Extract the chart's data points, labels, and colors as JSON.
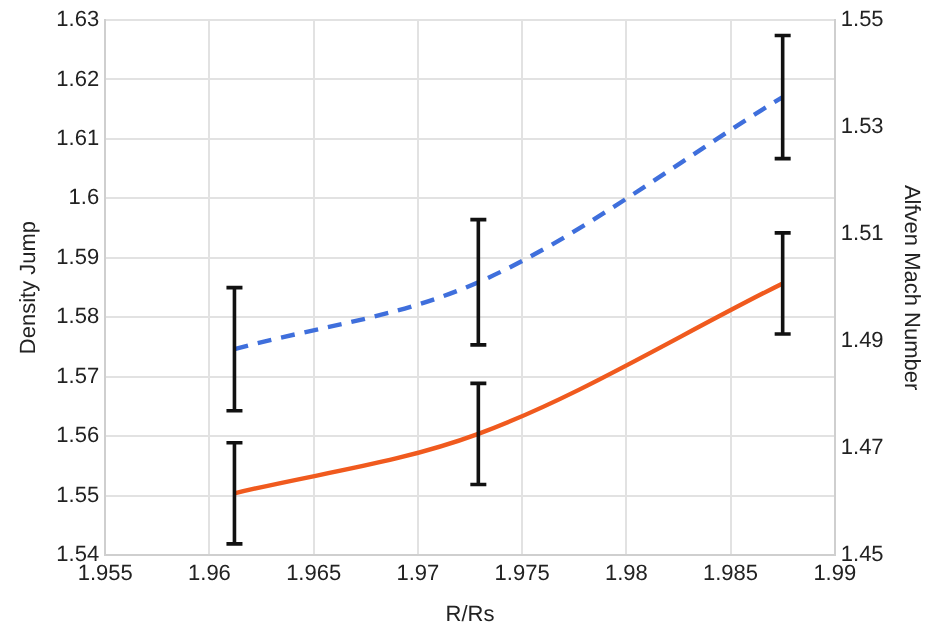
{
  "chart_data": {
    "type": "line",
    "xlabel": "R/Rs",
    "ylabel": "Density Jump",
    "y2label": "Alfven Mach Number",
    "x": [
      1.9612,
      1.9729,
      1.9875
    ],
    "series": [
      {
        "color": "#f05a1e",
        "values": [
          1.5504,
          1.5604,
          1.5857
        ],
        "errors": [
          0.0085,
          0.0085,
          0.0085
        ],
        "line_style": "solid"
      },
      {
        "color": "#3f6fdc",
        "values": [
          1.4885,
          1.501,
          1.5356
        ],
        "errors": [
          0.0115,
          0.0117,
          0.0115
        ],
        "axis": "y2",
        "line_style": "dashed"
      }
    ],
    "xlim": [
      1.955,
      1.99
    ],
    "xticks": [
      1.955,
      1.96,
      1.965,
      1.97,
      1.975,
      1.98,
      1.985,
      1.99
    ],
    "ylim": [
      1.54,
      1.63
    ],
    "yticks": [
      1.54,
      1.55,
      1.56,
      1.57,
      1.58,
      1.59,
      1.6,
      1.61,
      1.62,
      1.63
    ],
    "y2lim": [
      1.45,
      1.55
    ],
    "y2ticks": [
      1.45,
      1.47,
      1.49,
      1.51,
      1.53,
      1.55
    ],
    "grid": true,
    "legend": false,
    "marker": "none"
  }
}
